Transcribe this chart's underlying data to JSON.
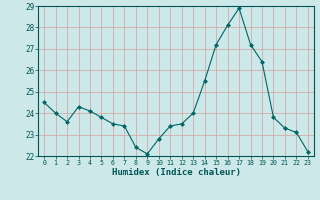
{
  "x": [
    0,
    1,
    2,
    3,
    4,
    5,
    6,
    7,
    8,
    9,
    10,
    11,
    12,
    13,
    14,
    15,
    16,
    17,
    18,
    19,
    20,
    21,
    22,
    23
  ],
  "y": [
    24.5,
    24.0,
    23.6,
    24.3,
    24.1,
    23.8,
    23.5,
    23.4,
    22.4,
    22.1,
    22.8,
    23.4,
    23.5,
    24.0,
    25.5,
    27.2,
    28.1,
    28.9,
    27.2,
    26.4,
    23.8,
    23.3,
    23.1,
    22.2
  ],
  "line_color": "#006666",
  "marker": "D",
  "marker_size": 2.0,
  "bg_color": "#cce8e8",
  "grid_color": "#d4a0a0",
  "xlabel": "Humidex (Indice chaleur)",
  "xlabel_color": "#005555",
  "ylim": [
    22,
    29
  ],
  "yticks": [
    22,
    23,
    24,
    25,
    26,
    27,
    28,
    29
  ],
  "xticks": [
    0,
    1,
    2,
    3,
    4,
    5,
    6,
    7,
    8,
    9,
    10,
    11,
    12,
    13,
    14,
    15,
    16,
    17,
    18,
    19,
    20,
    21,
    22,
    23
  ],
  "tick_color": "#005555"
}
